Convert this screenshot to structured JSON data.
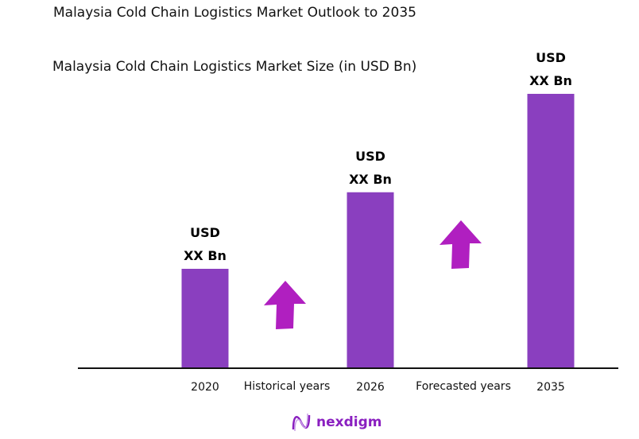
{
  "title": "Malaysia Cold Chain Logistics Market Outlook to 2035",
  "chart_data": {
    "type": "bar",
    "title": "Malaysia Cold Chain Logistics Market Size (in USD Bn)",
    "categories": [
      "2020",
      "2026",
      "2035"
    ],
    "relative_values": [
      1,
      1.77,
      2.76
    ],
    "data_labels": [
      [
        "USD",
        "XX Bn"
      ],
      [
        "USD",
        "XX Bn"
      ],
      [
        "USD",
        "XX Bn"
      ]
    ],
    "period_labels": [
      "Historical years",
      "Forecasted years"
    ],
    "grid": false,
    "colors": {
      "bar": "#8a3fbf",
      "arrow": "#b01fc0",
      "axis": "#111111"
    }
  },
  "logo": {
    "text": "nexdigm"
  }
}
